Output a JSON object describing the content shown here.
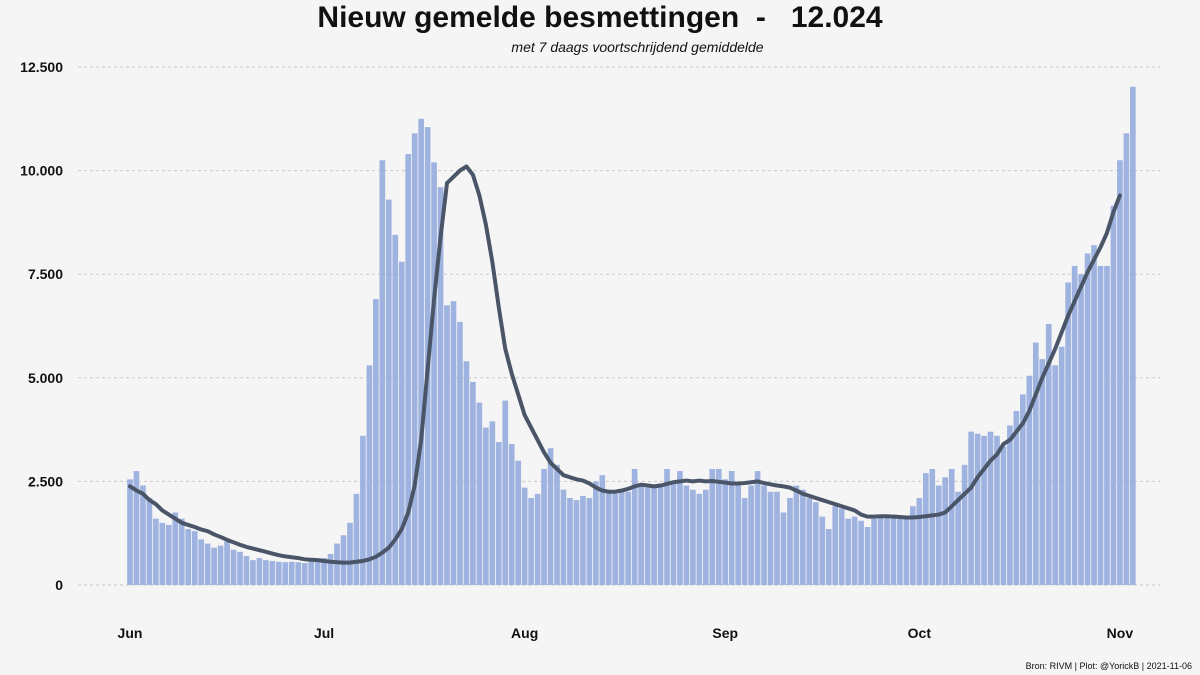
{
  "header": {
    "title": "Nieuw gemelde besmettingen  -   12.024",
    "subtitle": "met 7 daags voortschrijdend gemiddelde"
  },
  "footer": {
    "source": "Bron: RIVM | Plot: @YorickB |  2021-11-06"
  },
  "colors": {
    "bar": "#9fb3e0",
    "line": "#4a5568",
    "grid": "#c8c8c8",
    "background": "#f5f5f5"
  },
  "chart_data": {
    "type": "bar",
    "title": "Nieuw gemelde besmettingen  -   12.024",
    "subtitle": "met 7 daags voortschrijdend gemiddelde",
    "xlabel": "",
    "ylabel": "",
    "x_start": "2021-06-01",
    "ylim": [
      0,
      12500
    ],
    "y_ticks": [
      0,
      2500,
      5000,
      7500,
      10000,
      12500
    ],
    "y_tick_labels": [
      "0",
      "2.500",
      "5.000",
      "7.500",
      "10.000",
      "12.500"
    ],
    "x_ticks": [
      {
        "label": "Jun",
        "date": "2021-06-01"
      },
      {
        "label": "Jul",
        "date": "2021-07-01"
      },
      {
        "label": "Aug",
        "date": "2021-08-01"
      },
      {
        "label": "Sep",
        "date": "2021-09-01"
      },
      {
        "label": "Oct",
        "date": "2021-10-01"
      },
      {
        "label": "Nov",
        "date": "2021-11-01"
      }
    ],
    "grid": true,
    "series": [
      {
        "type": "bar",
        "values": [
          2550,
          2750,
          2400,
          2100,
          1600,
          1500,
          1450,
          1750,
          1600,
          1350,
          1300,
          1100,
          1000,
          900,
          950,
          1050,
          850,
          800,
          700,
          600,
          650,
          600,
          580,
          560,
          550,
          560,
          550,
          530,
          570,
          600,
          650,
          750,
          1000,
          1200,
          1500,
          2200,
          3600,
          5300,
          6900,
          10250,
          9300,
          8450,
          7800,
          10400,
          10900,
          11250,
          11050,
          10200,
          9600,
          6750,
          6850,
          6350,
          5400,
          4900,
          4400,
          3800,
          3950,
          3450,
          4450,
          3400,
          3000,
          2350,
          2100,
          2200,
          2800,
          3300,
          2900,
          2300,
          2100,
          2050,
          2150,
          2100,
          2500,
          2650,
          2300,
          2200,
          2250,
          2250,
          2800,
          2400,
          2350,
          2400,
          2450,
          2800,
          2500,
          2750,
          2400,
          2300,
          2200,
          2300,
          2800,
          2800,
          2550,
          2750,
          2400,
          2100,
          2400,
          2750,
          2400,
          2250,
          2250,
          1750,
          2100,
          2400,
          2300,
          2100,
          2000,
          1650,
          1350,
          1900,
          1850,
          1600,
          1650,
          1550,
          1400,
          1600,
          1700,
          1700,
          1700,
          1600,
          1600,
          1900,
          2100,
          2700,
          2800,
          2400,
          2600,
          2800,
          2250,
          2900,
          3700,
          3650,
          3600,
          3700,
          3600,
          3350,
          3850,
          4200,
          4600,
          5050,
          5850,
          5450,
          6300,
          5300,
          5750,
          7300,
          7700,
          7500,
          8000,
          8200,
          7700,
          7700,
          9150,
          10250,
          10900,
          12024
        ]
      },
      {
        "type": "line",
        "values": [
          2380,
          2280,
          2200,
          2050,
          1950,
          1800,
          1700,
          1600,
          1500,
          1450,
          1400,
          1340,
          1300,
          1220,
          1160,
          1090,
          1030,
          970,
          920,
          880,
          840,
          800,
          760,
          720,
          690,
          670,
          650,
          620,
          610,
          600,
          580,
          560,
          550,
          540,
          540,
          560,
          580,
          620,
          680,
          780,
          900,
          1100,
          1350,
          1750,
          2400,
          3500,
          5200,
          6900,
          8400,
          9700,
          9850,
          10000,
          10100,
          9900,
          9400,
          8700,
          7800,
          6700,
          5700,
          5100,
          4600,
          4100,
          3800,
          3500,
          3200,
          2950,
          2800,
          2650,
          2600,
          2550,
          2520,
          2450,
          2350,
          2280,
          2250,
          2250,
          2280,
          2320,
          2380,
          2420,
          2400,
          2380,
          2400,
          2440,
          2480,
          2500,
          2520,
          2500,
          2520,
          2500,
          2510,
          2490,
          2470,
          2450,
          2450,
          2460,
          2480,
          2500,
          2460,
          2430,
          2400,
          2380,
          2350,
          2280,
          2200,
          2150,
          2100,
          2050,
          2000,
          1950,
          1900,
          1850,
          1800,
          1700,
          1650,
          1650,
          1660,
          1660,
          1650,
          1640,
          1630,
          1630,
          1640,
          1660,
          1680,
          1700,
          1750,
          1900,
          2050,
          2200,
          2350,
          2600,
          2800,
          3000,
          3150,
          3400,
          3500,
          3700,
          3900,
          4200,
          4600,
          5000,
          5350,
          5700,
          6100,
          6500,
          6850,
          7200,
          7550,
          7850,
          8150,
          8500,
          9000,
          9400
        ]
      }
    ]
  }
}
